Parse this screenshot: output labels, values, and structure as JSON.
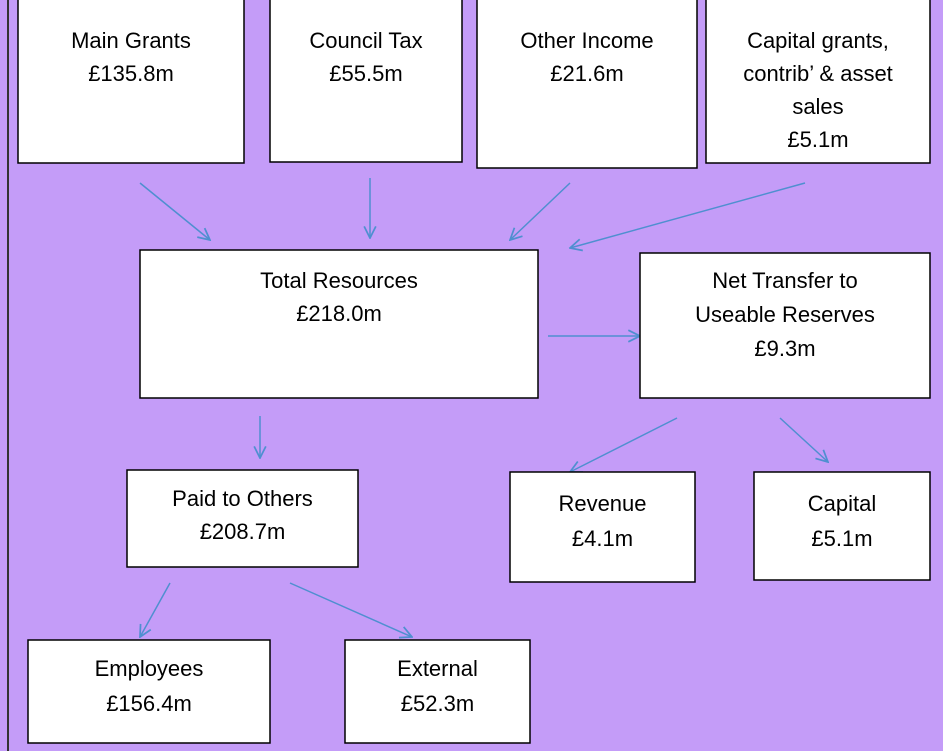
{
  "nodes": [
    {
      "lines": [
        "Main Grants",
        "£135.8m"
      ]
    },
    {
      "lines": [
        "Council Tax",
        "£55.5m"
      ]
    },
    {
      "lines": [
        "Other Income",
        "£21.6m"
      ]
    },
    {
      "lines": [
        "Capital grants,",
        "contrib’ & asset",
        "sales",
        "£5.1m"
      ]
    },
    {
      "lines": [
        "Total Resources",
        "£218.0m"
      ]
    },
    {
      "lines": [
        "Net Transfer to",
        "Useable Reserves",
        "£9.3m"
      ]
    },
    {
      "lines": [
        "Paid to Others",
        "£208.7m"
      ]
    },
    {
      "lines": [
        "Revenue",
        "£4.1m"
      ]
    },
    {
      "lines": [
        "Capital",
        "£5.1m"
      ]
    },
    {
      "lines": [
        "Employees",
        "£156.4m"
      ]
    },
    {
      "lines": [
        "External",
        "£52.3m"
      ]
    }
  ]
}
